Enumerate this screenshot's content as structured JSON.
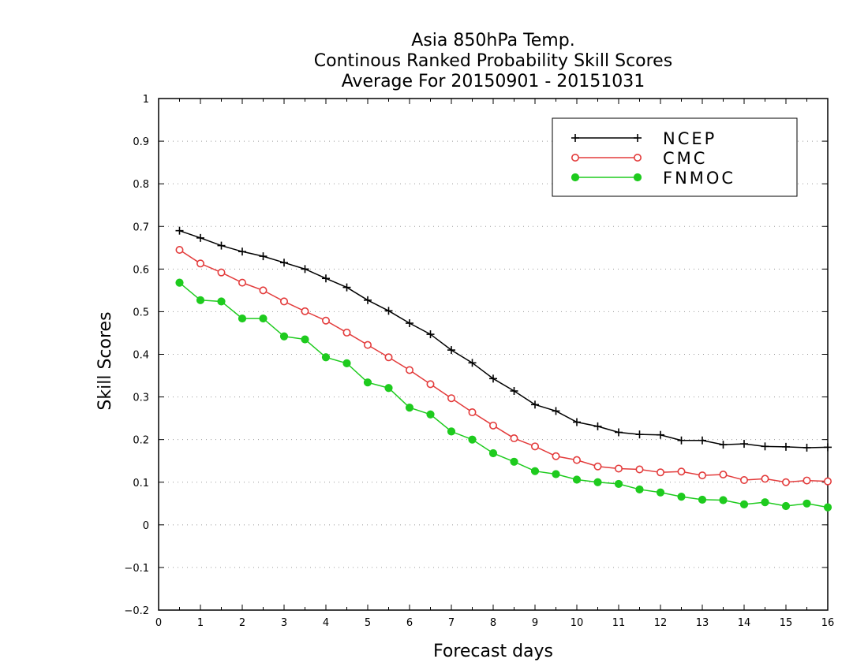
{
  "chart_data": {
    "type": "line",
    "title": [
      "Asia 850hPa Temp.",
      "Continous Ranked Probability Skill Scores",
      "Average For 20150901 - 20151031"
    ],
    "xlabel": "Forecast days",
    "ylabel": "Skill Scores",
    "xlim": [
      0,
      16
    ],
    "ylim": [
      -0.2,
      1
    ],
    "xticks": [
      0,
      1,
      2,
      3,
      4,
      5,
      6,
      7,
      8,
      9,
      10,
      11,
      12,
      13,
      14,
      15,
      16
    ],
    "yticks": [
      -0.2,
      -0.1,
      0,
      0.1,
      0.2,
      0.3,
      0.4,
      0.5,
      0.6,
      0.7,
      0.8,
      0.9,
      1
    ],
    "grid": "horizontal-dotted",
    "legend_position": "top-right",
    "x": [
      0.5,
      1,
      1.5,
      2,
      2.5,
      3,
      3.5,
      4,
      4.5,
      5,
      5.5,
      6,
      6.5,
      7,
      7.5,
      8,
      8.5,
      9,
      9.5,
      10,
      10.5,
      11,
      11.5,
      12,
      12.5,
      13,
      13.5,
      14,
      14.5,
      15,
      15.5,
      16
    ],
    "series": [
      {
        "name": "NCEP",
        "color": "#000000",
        "marker": "plus",
        "values": [
          0.69,
          0.673,
          0.655,
          0.641,
          0.63,
          0.615,
          0.6,
          0.578,
          0.557,
          0.527,
          0.502,
          0.473,
          0.447,
          0.41,
          0.38,
          0.343,
          0.314,
          0.282,
          0.267,
          0.241,
          0.231,
          0.217,
          0.212,
          0.211,
          0.198,
          0.198,
          0.188,
          0.19,
          0.184,
          0.183,
          0.181,
          0.182
        ]
      },
      {
        "name": "CMC",
        "color": "#e33b3b",
        "marker": "open-circle",
        "values": [
          0.645,
          0.613,
          0.592,
          0.568,
          0.55,
          0.524,
          0.501,
          0.479,
          0.451,
          0.422,
          0.393,
          0.363,
          0.33,
          0.297,
          0.264,
          0.233,
          0.203,
          0.184,
          0.161,
          0.152,
          0.137,
          0.132,
          0.13,
          0.123,
          0.125,
          0.116,
          0.118,
          0.105,
          0.108,
          0.1,
          0.104,
          0.102
        ]
      },
      {
        "name": "FNMOC",
        "color": "#1ecb1e",
        "marker": "filled-circle",
        "values": [
          0.568,
          0.527,
          0.524,
          0.484,
          0.484,
          0.442,
          0.435,
          0.393,
          0.379,
          0.334,
          0.321,
          0.275,
          0.259,
          0.219,
          0.2,
          0.168,
          0.148,
          0.126,
          0.119,
          0.106,
          0.1,
          0.096,
          0.083,
          0.076,
          0.066,
          0.059,
          0.058,
          0.048,
          0.053,
          0.044,
          0.05,
          0.041
        ]
      }
    ]
  }
}
